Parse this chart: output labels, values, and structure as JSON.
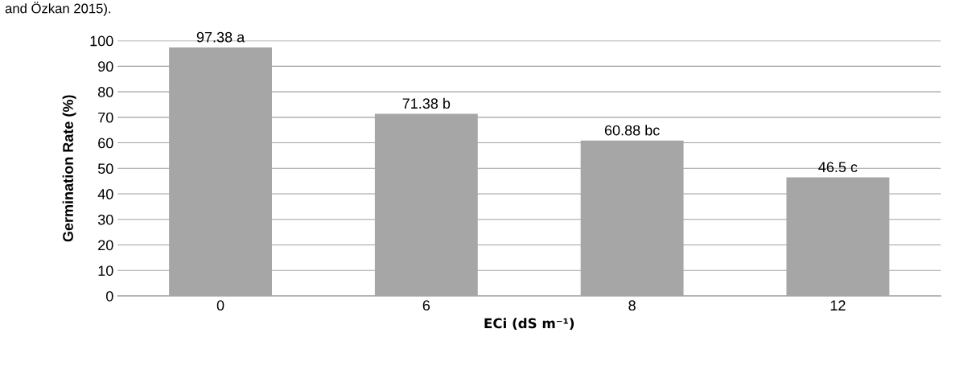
{
  "chart_data": {
    "type": "bar",
    "categories": [
      "0",
      "6",
      "8",
      "12"
    ],
    "values": [
      97.38,
      71.38,
      60.88,
      46.5
    ],
    "value_labels": [
      "97.38 a",
      "71.38 b",
      "60.88 bc",
      "46.5 c"
    ],
    "color": "#a6a6a6",
    "xlabel": "ECi (dS m⁻¹)",
    "ylabel": "Germination Rate (%)",
    "ylim": [
      0,
      100
    ],
    "yticks": [
      0,
      10,
      20,
      30,
      40,
      50,
      60,
      70,
      80,
      90,
      100
    ],
    "grid": "y",
    "annotations": [
      "and Özkan 2015)."
    ]
  }
}
